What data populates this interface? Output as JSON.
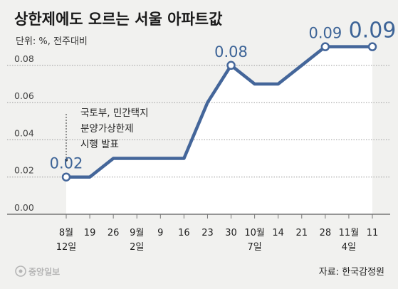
{
  "header": {
    "title": "상한제에도 오르는 서울 아파트값",
    "unit": "단위: %, 전주대비"
  },
  "footer": {
    "source": "자료: 한국감정원",
    "logo": "중앙일보"
  },
  "chart_data": {
    "type": "line",
    "title": "상한제에도 오르는 서울 아파트값",
    "subtitle": "단위: %, 전주대비",
    "categories": [
      [
        "8월",
        "12일"
      ],
      [
        "19"
      ],
      [
        "26"
      ],
      [
        "9월",
        "2일"
      ],
      [
        "9"
      ],
      [
        "16"
      ],
      [
        "23"
      ],
      [
        "30"
      ],
      [
        "10월",
        "7일"
      ],
      [
        "14"
      ],
      [
        "21"
      ],
      [
        "28"
      ],
      [
        "11월",
        "4일"
      ],
      [
        "11"
      ]
    ],
    "series": [
      {
        "values": [
          0.02,
          0.02,
          0.03,
          0.03,
          0.03,
          0.03,
          0.06,
          0.08,
          0.07,
          0.07,
          0.08,
          0.09,
          0.09,
          0.09
        ]
      }
    ],
    "data_labels": [
      {
        "index": 0,
        "text": "0.02"
      },
      {
        "index": 7,
        "text": "0.08"
      },
      {
        "index": 11,
        "text": "0.09"
      },
      {
        "index": 13,
        "text": "0.09"
      }
    ],
    "yticks": [
      "0.00",
      "0.02",
      "0.04",
      "0.06",
      "0.08"
    ],
    "ylim": [
      0,
      0.1
    ],
    "annotation": {
      "index": 0,
      "lines": [
        "국토부, 민간택지",
        "분양가상한제",
        "시행 발표"
      ]
    },
    "colors": {
      "line": "#44669a",
      "fill": "#ffffff",
      "grid": "#9a9a9a"
    },
    "grid": true
  }
}
